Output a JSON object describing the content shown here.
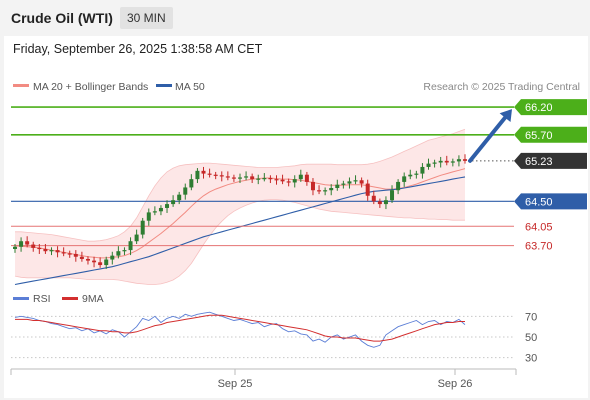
{
  "header": {
    "title": "Crude Oil (WTI)",
    "timeframe": "30 MIN",
    "datetime": "Friday, September 26, 2025 1:38:58 AM CET"
  },
  "legend": {
    "ma20_label": "MA 20 + Bollinger Bands",
    "ma50_label": "MA 50",
    "credit": "Research © 2025 Trading Central",
    "rsi_label": "RSI",
    "ma9_label": "9MA"
  },
  "colors": {
    "ma20": "#f28b82",
    "ma50": "#2f5ea8",
    "bollinger_fill": "#fde3e3",
    "resistance": "#4caf1a",
    "support": "#2f5ea8",
    "pivot_line": "#e57373",
    "current_price": "#333333",
    "arrow": "#2f5ea8",
    "candle_up": "#2e7d32",
    "candle_down": "#c62828",
    "rsi_line": "#5b7ed6",
    "ma9_line": "#d32f2f"
  },
  "chart_data": [
    {
      "type": "candlestick",
      "title": "",
      "ylim": [
        62.9,
        66.4
      ],
      "x_labels": [
        "Sep 25",
        "Sep 26"
      ],
      "levels": [
        {
          "value": 66.2,
          "label": "66.20",
          "role": "resistance"
        },
        {
          "value": 65.7,
          "label": "65.70",
          "role": "resistance"
        },
        {
          "value": 65.23,
          "label": "65.23",
          "role": "current"
        },
        {
          "value": 64.5,
          "label": "64.50",
          "role": "pivot"
        },
        {
          "value": 64.05,
          "label": "64.05",
          "role": "support"
        },
        {
          "value": 63.7,
          "label": "63.70",
          "role": "support"
        }
      ],
      "forecast": {
        "from": 65.23,
        "to": 66.2,
        "direction": "up"
      },
      "close": [
        63.68,
        63.78,
        63.72,
        63.66,
        63.64,
        63.6,
        63.62,
        63.58,
        63.56,
        63.55,
        63.5,
        63.46,
        63.43,
        63.4,
        63.35,
        63.45,
        63.52,
        63.6,
        63.62,
        63.78,
        63.9,
        64.15,
        64.3,
        64.32,
        64.38,
        64.45,
        64.52,
        64.62,
        64.75,
        64.9,
        65.05,
        65.0,
        64.98,
        64.97,
        64.95,
        64.93,
        64.92,
        64.93,
        64.95,
        64.9,
        64.91,
        64.92,
        64.9,
        64.89,
        64.86,
        64.84,
        64.9,
        64.98,
        64.85,
        64.7,
        64.68,
        64.7,
        64.74,
        64.8,
        64.82,
        64.86,
        64.88,
        64.82,
        64.6,
        64.5,
        64.45,
        64.52,
        64.7,
        64.85,
        64.95,
        64.98,
        65.0,
        65.12,
        65.18,
        65.2,
        65.23,
        65.2,
        65.22,
        65.26,
        65.23
      ],
      "ma20": [
        63.7,
        63.69,
        63.68,
        63.67,
        63.66,
        63.64,
        63.62,
        63.6,
        63.58,
        63.56,
        63.54,
        63.52,
        63.5,
        63.49,
        63.48,
        63.48,
        63.49,
        63.5,
        63.52,
        63.56,
        63.61,
        63.68,
        63.76,
        63.84,
        63.92,
        64.01,
        64.1,
        64.2,
        64.3,
        64.41,
        64.51,
        64.6,
        64.67,
        64.72,
        64.76,
        64.8,
        64.83,
        64.86,
        64.88,
        64.9,
        64.91,
        64.92,
        64.92,
        64.91,
        64.9,
        64.9,
        64.89,
        64.88,
        64.86,
        64.84,
        64.82,
        64.8,
        64.79,
        64.79,
        64.79,
        64.8,
        64.8,
        64.8,
        64.78,
        64.76,
        64.74,
        64.72,
        64.72,
        64.73,
        64.75,
        64.78,
        64.81,
        64.85,
        64.89,
        64.93,
        64.97,
        65.0,
        65.03,
        65.06,
        65.09
      ],
      "bb_upper": [
        63.95,
        63.95,
        63.94,
        63.93,
        63.92,
        63.91,
        63.9,
        63.88,
        63.86,
        63.84,
        63.82,
        63.8,
        63.78,
        63.78,
        63.79,
        63.81,
        63.84,
        63.88,
        63.95,
        64.05,
        64.2,
        64.4,
        64.6,
        64.78,
        64.92,
        65.03,
        65.1,
        65.14,
        65.16,
        65.17,
        65.18,
        65.19,
        65.19,
        65.18,
        65.17,
        65.16,
        65.15,
        65.14,
        65.13,
        65.12,
        65.11,
        65.11,
        65.11,
        65.11,
        65.12,
        65.13,
        65.14,
        65.16,
        65.17,
        65.17,
        65.17,
        65.17,
        65.17,
        65.16,
        65.16,
        65.16,
        65.16,
        65.16,
        65.17,
        65.19,
        65.22,
        65.26,
        65.3,
        65.35,
        65.4,
        65.45,
        65.5,
        65.55,
        65.6,
        65.63,
        65.66,
        65.69,
        65.72,
        65.76,
        65.8
      ],
      "bb_lower": [
        63.15,
        63.13,
        63.12,
        63.12,
        63.12,
        63.12,
        63.12,
        63.12,
        63.12,
        63.12,
        63.11,
        63.1,
        63.09,
        63.09,
        63.09,
        63.09,
        63.09,
        63.08,
        63.06,
        63.04,
        63.02,
        63.01,
        63.0,
        63.0,
        63.01,
        63.04,
        63.08,
        63.15,
        63.25,
        63.38,
        63.55,
        63.72,
        63.88,
        64.02,
        64.14,
        64.24,
        64.32,
        64.38,
        64.43,
        64.47,
        64.5,
        64.52,
        64.53,
        64.53,
        64.52,
        64.5,
        64.48,
        64.45,
        64.42,
        64.39,
        64.36,
        64.34,
        64.32,
        64.31,
        64.3,
        64.29,
        64.28,
        64.27,
        64.26,
        64.25,
        64.24,
        64.23,
        64.22,
        64.21,
        64.2,
        64.2,
        64.19,
        64.19,
        64.18,
        64.18,
        64.17,
        64.17,
        64.16,
        64.16,
        64.16
      ],
      "ma50": [
        63.0,
        63.02,
        63.04,
        63.06,
        63.08,
        63.1,
        63.12,
        63.14,
        63.16,
        63.18,
        63.2,
        63.22,
        63.24,
        63.26,
        63.28,
        63.3,
        63.32,
        63.35,
        63.38,
        63.41,
        63.44,
        63.47,
        63.5,
        63.54,
        63.58,
        63.62,
        63.66,
        63.7,
        63.74,
        63.78,
        63.82,
        63.86,
        63.89,
        63.92,
        63.95,
        63.98,
        64.01,
        64.04,
        64.07,
        64.1,
        64.13,
        64.16,
        64.19,
        64.22,
        64.25,
        64.28,
        64.31,
        64.34,
        64.37,
        64.4,
        64.43,
        64.46,
        64.49,
        64.52,
        64.55,
        64.58,
        64.61,
        64.64,
        64.66,
        64.68,
        64.69,
        64.7,
        64.71,
        64.72,
        64.74,
        64.76,
        64.78,
        64.8,
        64.82,
        64.84,
        64.86,
        64.88,
        64.9,
        64.92,
        64.94
      ]
    },
    {
      "type": "line",
      "title": "",
      "ylim": [
        20,
        80
      ],
      "y_ticks": [
        70,
        50,
        30
      ],
      "series": [
        {
          "name": "RSI",
          "values": [
            69,
            70,
            69,
            68,
            66,
            65,
            63,
            62,
            60,
            58,
            59,
            56,
            58,
            54,
            56,
            53,
            57,
            55,
            50,
            55,
            60,
            68,
            66,
            70,
            64,
            68,
            70,
            68,
            72,
            70,
            72,
            73,
            74,
            72,
            70,
            68,
            66,
            67,
            65,
            63,
            64,
            60,
            62,
            63,
            58,
            55,
            56,
            53,
            52,
            46,
            48,
            45,
            50,
            52,
            48,
            50,
            52,
            46,
            42,
            40,
            42,
            52,
            56,
            60,
            62,
            64,
            66,
            62,
            65,
            66,
            62,
            65,
            64,
            67,
            62
          ]
        },
        {
          "name": "9MA",
          "values": [
            67,
            67,
            67,
            66,
            66,
            65,
            64,
            63,
            62,
            61,
            60,
            59,
            58,
            57,
            56,
            56,
            55,
            55,
            54,
            54,
            55,
            57,
            59,
            61,
            62,
            64,
            65,
            66,
            67,
            68,
            69,
            70,
            71,
            71,
            71,
            70,
            69,
            68,
            67,
            66,
            65,
            64,
            63,
            62,
            61,
            60,
            59,
            58,
            57,
            55,
            53,
            51,
            50,
            50,
            49,
            49,
            49,
            48,
            47,
            46,
            46,
            47,
            48,
            50,
            52,
            54,
            56,
            58,
            60,
            62,
            63,
            64,
            64,
            65,
            65
          ]
        }
      ]
    }
  ]
}
